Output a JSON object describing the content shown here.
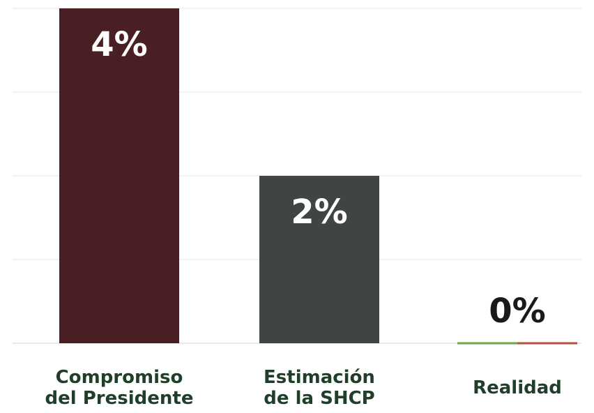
{
  "chart_data": {
    "type": "bar",
    "categories": [
      [
        "Compromiso",
        "del Presidente"
      ],
      [
        "Estimación",
        "de la SHCP"
      ],
      [
        "Realidad"
      ]
    ],
    "values": [
      4,
      2,
      0
    ],
    "value_labels": [
      "4%",
      "2%",
      "0%"
    ],
    "colors": [
      "#4a1f24",
      "#3f4543",
      "#3f4543"
    ],
    "zero_bar_accent": [
      "#6aa84f",
      "#b5523b"
    ],
    "value_label_colors": [
      "#ffffff",
      "#ffffff",
      "#1a1a1a"
    ],
    "category_label_color": "#1f3f2a",
    "ylim": [
      0,
      4
    ],
    "grid": true,
    "title": "",
    "xlabel": "",
    "ylabel": ""
  }
}
